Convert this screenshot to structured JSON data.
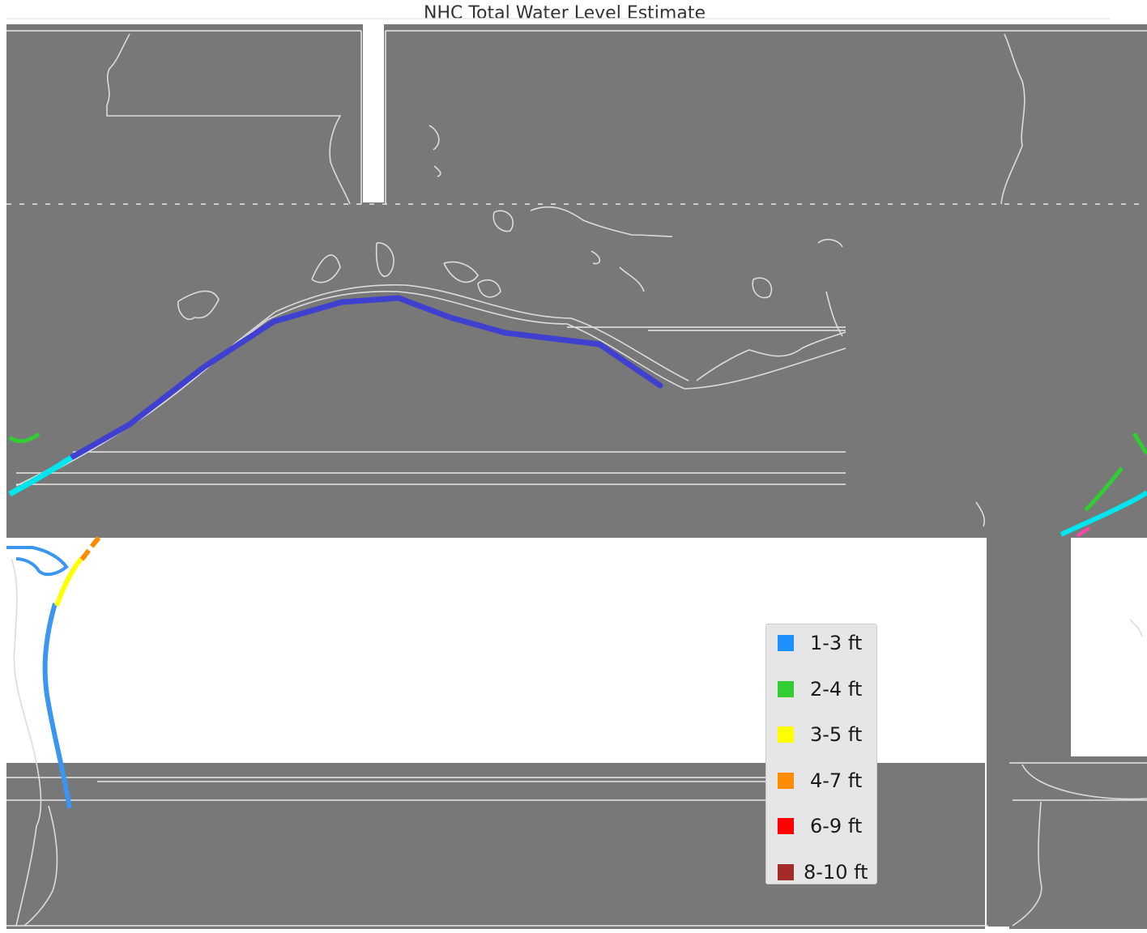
{
  "map": {
    "title": "NHC Total Water Level Estimate",
    "colors": {
      "water": "#787878",
      "coast": "#d8d8d8",
      "land_gap": "#ffffff",
      "track": "#4040d0"
    }
  },
  "legend": {
    "items": [
      {
        "label": "1-3 ft",
        "color": "#1e90ff"
      },
      {
        "label": "2-4 ft",
        "color": "#32cd32"
      },
      {
        "label": "3-5 ft",
        "color": "#ffff00"
      },
      {
        "label": "4-7 ft",
        "color": "#ff8c00"
      },
      {
        "label": "6-9 ft",
        "color": "#ff0000"
      },
      {
        "label": "8-10 ft",
        "color": "#a52a2a"
      }
    ]
  }
}
